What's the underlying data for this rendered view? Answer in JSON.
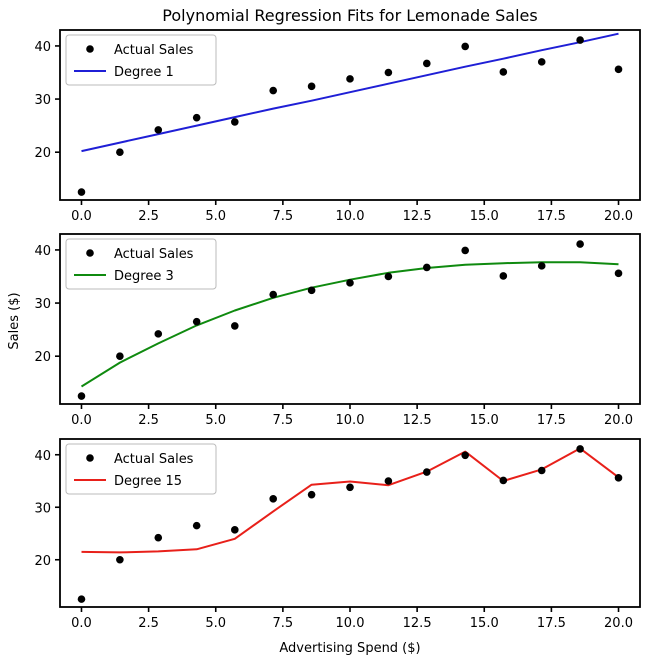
{
  "chart_data": {
    "type": "line",
    "title": "Polynomial Regression Fits for Lemonade Sales",
    "xlabel": "Advertising Spend ($)",
    "ylabel": "Sales ($)",
    "xlim": [
      -0.8,
      20.8
    ],
    "ylim": [
      11,
      43
    ],
    "x_ticks": [
      0.0,
      2.5,
      5.0,
      7.5,
      10.0,
      12.5,
      15.0,
      17.5,
      20.0
    ],
    "x_tick_labels": [
      "0.0",
      "2.5",
      "5.0",
      "7.5",
      "10.0",
      "12.5",
      "15.0",
      "17.5",
      "20.0"
    ],
    "y_ticks": [
      20,
      30,
      40
    ],
    "y_tick_labels": [
      "20",
      "30",
      "40"
    ],
    "legend_position": "top-left",
    "scatter_name": "Actual Sales",
    "x": [
      0.0,
      1.43,
      2.86,
      4.29,
      5.71,
      7.14,
      8.57,
      10.0,
      11.43,
      12.86,
      14.29,
      15.71,
      17.14,
      18.57,
      20.0
    ],
    "actual": [
      12.5,
      20.0,
      24.2,
      26.5,
      25.7,
      31.6,
      32.4,
      33.8,
      35.0,
      36.7,
      39.9,
      35.1,
      37.0,
      41.1,
      35.6
    ],
    "subplots": [
      {
        "name": "Degree 1",
        "color": "#1f1fd6",
        "fit": [
          20.2,
          21.8,
          23.4,
          25.0,
          26.6,
          28.2,
          29.7,
          31.3,
          32.9,
          34.5,
          36.1,
          37.6,
          39.2,
          40.7,
          42.3
        ]
      },
      {
        "name": "Degree 3",
        "color": "#0f8a0f",
        "fit": [
          14.3,
          18.8,
          22.4,
          25.8,
          28.6,
          31.0,
          32.9,
          34.4,
          35.7,
          36.6,
          37.2,
          37.5,
          37.7,
          37.7,
          37.3
        ]
      },
      {
        "name": "Degree 15",
        "color": "#e8201a",
        "fit": [
          21.5,
          21.4,
          21.6,
          22.0,
          24.0,
          29.2,
          34.3,
          34.9,
          34.2,
          36.8,
          40.6,
          35.0,
          37.2,
          41.2,
          35.7
        ]
      }
    ]
  }
}
